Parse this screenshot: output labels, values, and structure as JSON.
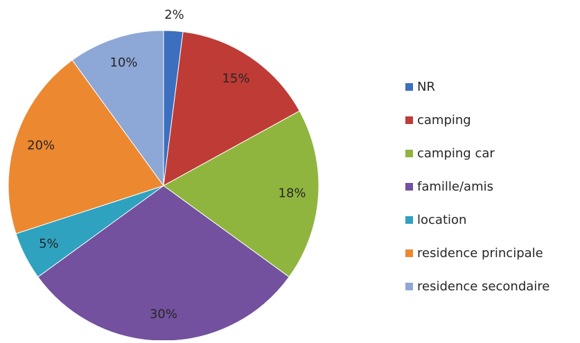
{
  "chart_data": {
    "type": "pie",
    "categories": [
      "NR",
      "camping",
      "camping car",
      "famille/amis",
      "location",
      "residence principale",
      "residence secondaire"
    ],
    "values": [
      2,
      15,
      18,
      30,
      5,
      20,
      10
    ],
    "value_labels": [
      "2%",
      "15%",
      "18%",
      "30%",
      "5%",
      "20%",
      "10%"
    ],
    "colors": [
      "#3d6fbf",
      "#bf3b35",
      "#8fb53f",
      "#73519e",
      "#2fa2c0",
      "#ec8830",
      "#8da7d6"
    ],
    "legend": "right"
  }
}
